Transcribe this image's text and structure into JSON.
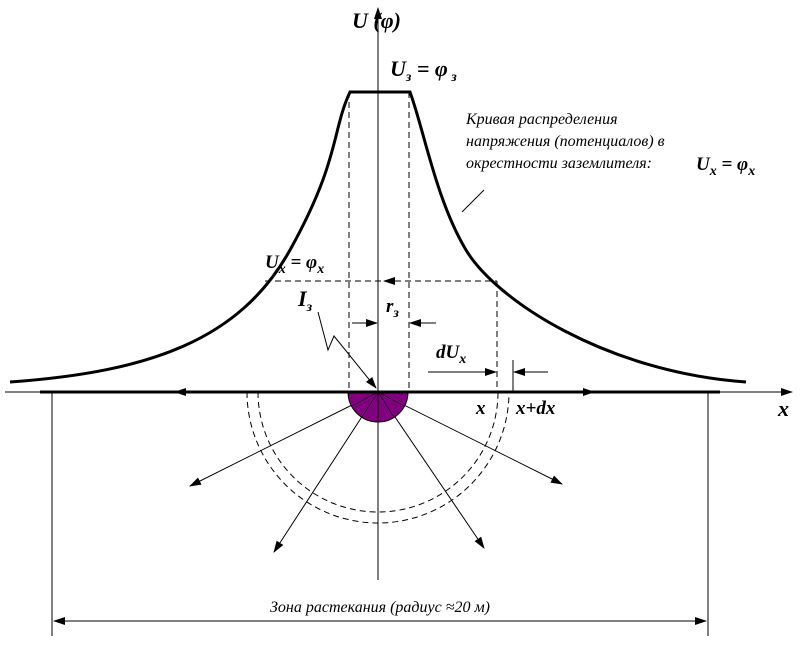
{
  "axes": {
    "y_label": "U (φ)",
    "x_label": "x"
  },
  "plateau_label": {
    "U": "U",
    "sub1": "з",
    "eq": " = φ",
    "sub2": " з"
  },
  "curve_note": {
    "lines": [
      "Кривая распределения",
      "напряжения (потенциалов) в",
      "окрестности заземлителя:"
    ],
    "U": "U",
    "sub1": "x",
    "eq": " = φ",
    "sub2": "x"
  },
  "level_label": {
    "U": "U",
    "sub1": "x",
    "eq": " = φ",
    "sub2": "x"
  },
  "current_label": {
    "I": "I",
    "sub": "з"
  },
  "radius_label": {
    "r": "r",
    "sub": "з"
  },
  "diff_label": {
    "d": "dU",
    "sub": "x"
  },
  "x_point": "x",
  "x_dx_point": "x+dx",
  "zone_label": "Зона растекания (радиус ≈20 м)"
}
